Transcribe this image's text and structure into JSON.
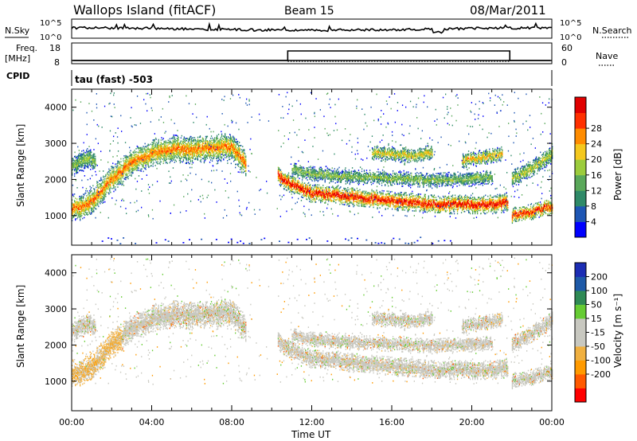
{
  "header": {
    "site": "Wallops Island (fitACF)",
    "beam": "Beam 15",
    "date": "08/Mar/2011"
  },
  "noise_panel": {
    "left_label": "N.Sky",
    "right_label": "N.Search",
    "top_tick": "10^5",
    "bottom_tick": "10^0"
  },
  "freq_panel": {
    "left_label_1": "Freq.",
    "left_label_2": "[MHz]",
    "right_label": "Nave",
    "left_ticks": [
      "18",
      "8"
    ],
    "right_ticks": [
      "60",
      "0"
    ],
    "nave_step_times_h": [
      10.8,
      21.9
    ],
    "nave_low": 0,
    "nave_high": 60
  },
  "cpid": {
    "label": "CPID",
    "value": "tau (fast) -503"
  },
  "colors": {
    "power": [
      "#0000ff",
      "#1e56b4",
      "#2f8a68",
      "#5aa85a",
      "#9ccc3c",
      "#f4c81e",
      "#ff8c00",
      "#ff3000",
      "#e00000"
    ],
    "velocity": [
      "#ff0000",
      "#ff5a00",
      "#ff9a00",
      "#f0b040",
      "#c8c8c0",
      "#c8c8c0",
      "#66cc33",
      "#2f8a55",
      "#1e5aa8",
      "#1c2db4"
    ]
  },
  "chart_data": [
    {
      "type": "heatmap",
      "name": "power",
      "ylabel": "Slant Range [km]",
      "yticks": [
        1000,
        2000,
        3000,
        4000
      ],
      "ylim": [
        180,
        4500
      ],
      "xlim_h": [
        0,
        24
      ],
      "colorbar": {
        "label": "Power [dB]",
        "ticks": [
          "4",
          "8",
          "12",
          "16",
          "20",
          "24",
          "28"
        ]
      },
      "echo_bands": [
        {
          "t": [
            0.0,
            0.5,
            1.0,
            1.5,
            2.0,
            3.0,
            4.0,
            5.0,
            6.0,
            7.0,
            8.0,
            8.7
          ],
          "r": [
            1200,
            1250,
            1400,
            1700,
            2000,
            2450,
            2700,
            2850,
            2800,
            2850,
            2900,
            2400
          ],
          "w": 380,
          "peak": 22
        },
        {
          "t": [
            0.0,
            0.4,
            0.8,
            1.2
          ],
          "r": [
            2350,
            2450,
            2550,
            2500
          ],
          "w": 300,
          "peak": 14
        },
        {
          "t": [
            10.3,
            11.0,
            12.0,
            13.0,
            14.0,
            15.0,
            16.0,
            17.0,
            18.0,
            19.0,
            20.0,
            21.0,
            21.8
          ],
          "r": [
            2100,
            1850,
            1600,
            1550,
            1500,
            1450,
            1400,
            1350,
            1300,
            1300,
            1300,
            1300,
            1350
          ],
          "w": 260,
          "peak": 27
        },
        {
          "t": [
            22.0,
            23.0,
            24.0
          ],
          "r": [
            1000,
            1100,
            1250
          ],
          "w": 220,
          "peak": 26
        },
        {
          "t": [
            11.0,
            12.0,
            13.0,
            14.0,
            15.0,
            16.0,
            17.0,
            18.0,
            19.0,
            20.0,
            21.0
          ],
          "r": [
            2250,
            2150,
            2100,
            2050,
            2050,
            2000,
            2000,
            1950,
            2000,
            2000,
            2050
          ],
          "w": 200,
          "peak": 14
        },
        {
          "t": [
            15.0,
            16.0,
            17.0,
            18.0
          ],
          "r": [
            2700,
            2700,
            2650,
            2750
          ],
          "w": 200,
          "peak": 18
        },
        {
          "t": [
            19.5,
            20.5,
            21.5
          ],
          "r": [
            2500,
            2600,
            2700
          ],
          "w": 200,
          "peak": 20
        },
        {
          "t": [
            22.0,
            23.0,
            24.0
          ],
          "r": [
            2000,
            2300,
            2700
          ],
          "w": 250,
          "peak": 16
        }
      ]
    },
    {
      "type": "heatmap",
      "name": "velocity",
      "xlabel": "Time UT",
      "ylabel": "Slant Range [km]",
      "yticks": [
        1000,
        2000,
        3000,
        4000
      ],
      "ylim": [
        180,
        4500
      ],
      "xticks": [
        "00:00",
        "04:00",
        "08:00",
        "12:00",
        "16:00",
        "20:00",
        "00:00"
      ],
      "xtick_hours": [
        0,
        4,
        8,
        12,
        16,
        20,
        24
      ],
      "colorbar": {
        "label": "Velocity [m s⁻¹]",
        "ticks": [
          "200",
          "100",
          "50",
          "15",
          "-15",
          "-50",
          "-100",
          "-200"
        ]
      }
    }
  ]
}
